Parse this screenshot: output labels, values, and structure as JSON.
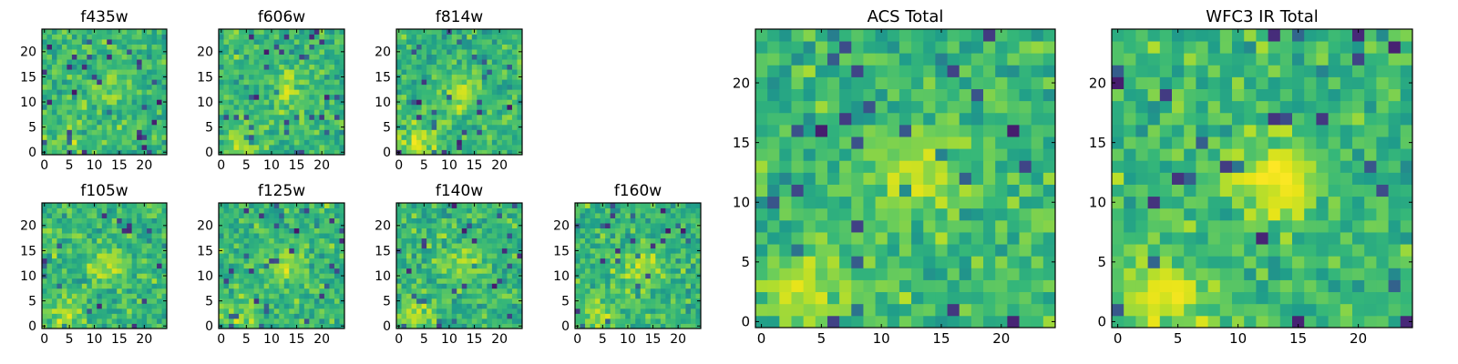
{
  "chart_data": [
    {
      "type": "heatmap",
      "title": "f435w",
      "xticks": [
        "0",
        "5",
        "10",
        "15",
        "20"
      ],
      "yticks": [
        "0",
        "5",
        "10",
        "15",
        "20"
      ],
      "xlim": [
        0,
        24
      ],
      "ylim": [
        0,
        24
      ],
      "colormap": "viridis",
      "grid_size": 25,
      "seed": 11,
      "blob_strength": 0.25
    },
    {
      "type": "heatmap",
      "title": "f606w",
      "xticks": [
        "0",
        "5",
        "10",
        "15",
        "20"
      ],
      "yticks": [
        "0",
        "5",
        "10",
        "15",
        "20"
      ],
      "xlim": [
        0,
        24
      ],
      "ylim": [
        0,
        24
      ],
      "colormap": "viridis",
      "grid_size": 25,
      "seed": 23,
      "blob_strength": 0.45
    },
    {
      "type": "heatmap",
      "title": "f814w",
      "xticks": [
        "0",
        "5",
        "10",
        "15",
        "20"
      ],
      "yticks": [
        "0",
        "5",
        "10",
        "15",
        "20"
      ],
      "xlim": [
        0,
        24
      ],
      "ylim": [
        0,
        24
      ],
      "colormap": "viridis",
      "grid_size": 25,
      "seed": 37,
      "blob_strength": 0.5
    },
    {
      "type": "heatmap",
      "title": "f105w",
      "xticks": [
        "0",
        "5",
        "10",
        "15",
        "20"
      ],
      "yticks": [
        "0",
        "5",
        "10",
        "15",
        "20"
      ],
      "xlim": [
        0,
        24
      ],
      "ylim": [
        0,
        24
      ],
      "colormap": "viridis",
      "grid_size": 25,
      "seed": 41,
      "blob_strength": 0.4
    },
    {
      "type": "heatmap",
      "title": "f125w",
      "xticks": [
        "0",
        "5",
        "10",
        "15",
        "20"
      ],
      "yticks": [
        "0",
        "5",
        "10",
        "15",
        "20"
      ],
      "xlim": [
        0,
        24
      ],
      "ylim": [
        0,
        24
      ],
      "colormap": "viridis",
      "grid_size": 25,
      "seed": 53,
      "blob_strength": 0.35
    },
    {
      "type": "heatmap",
      "title": "f140w",
      "xticks": [
        "0",
        "5",
        "10",
        "15",
        "20"
      ],
      "yticks": [
        "0",
        "5",
        "10",
        "15",
        "20"
      ],
      "xlim": [
        0,
        24
      ],
      "ylim": [
        0,
        24
      ],
      "colormap": "viridis",
      "grid_size": 25,
      "seed": 67,
      "blob_strength": 0.4
    },
    {
      "type": "heatmap",
      "title": "f160w",
      "xticks": [
        "0",
        "5",
        "10",
        "15",
        "20"
      ],
      "yticks": [
        "0",
        "5",
        "10",
        "15",
        "20"
      ],
      "xlim": [
        0,
        24
      ],
      "ylim": [
        0,
        24
      ],
      "colormap": "viridis",
      "grid_size": 25,
      "seed": 79,
      "blob_strength": 0.45
    },
    {
      "type": "heatmap",
      "title": "ACS Total",
      "xticks": [
        "0",
        "5",
        "10",
        "15",
        "20"
      ],
      "yticks": [
        "0",
        "5",
        "10",
        "15",
        "20"
      ],
      "xlim": [
        0,
        24
      ],
      "ylim": [
        0,
        24
      ],
      "colormap": "viridis",
      "grid_size": 25,
      "seed": 97,
      "blob_strength": 0.5
    },
    {
      "type": "heatmap",
      "title": "WFC3 IR Total",
      "xticks": [
        "0",
        "5",
        "10",
        "15",
        "20"
      ],
      "yticks": [
        "0",
        "5",
        "10",
        "15",
        "20"
      ],
      "xlim": [
        0,
        24
      ],
      "ylim": [
        0,
        24
      ],
      "colormap": "viridis",
      "grid_size": 25,
      "seed": 113,
      "blob_strength": 0.65
    }
  ]
}
